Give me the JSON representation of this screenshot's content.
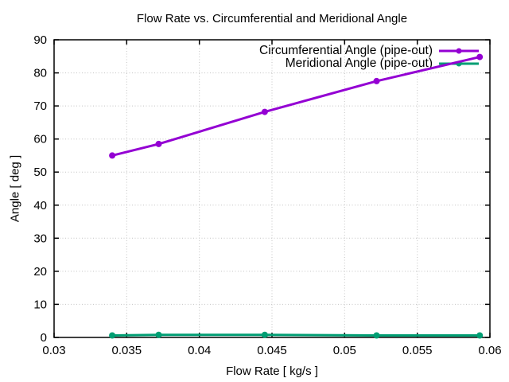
{
  "chart_data": {
    "type": "line",
    "title": "Flow Rate vs. Circumferential and Meridional Angle",
    "xlabel": "Flow Rate [ kg/s ]",
    "ylabel": "Angle [ deg ]",
    "xlim": [
      0.03,
      0.06
    ],
    "ylim": [
      0,
      90
    ],
    "xticks": [
      0.03,
      0.035,
      0.04,
      0.045,
      0.05,
      0.055,
      0.06
    ],
    "xtick_labels": [
      "0.03",
      "0.035",
      "0.04",
      "0.045",
      "0.05",
      "0.055",
      "0.06"
    ],
    "yticks": [
      0,
      10,
      20,
      30,
      40,
      50,
      60,
      70,
      80,
      90
    ],
    "ytick_labels": [
      "0",
      "10",
      "20",
      "30",
      "40",
      "50",
      "60",
      "70",
      "80",
      "90"
    ],
    "grid": true,
    "grid_style": "dotted",
    "legend_position": "top-right-inside",
    "marker": "filled-circle",
    "x": [
      0.034,
      0.0372,
      0.0445,
      0.0522,
      0.0593
    ],
    "series": [
      {
        "name": "Circumferential Angle (pipe-out)",
        "color": "#9400d3",
        "values": [
          55,
          58.5,
          68.2,
          77.5,
          84.8
        ]
      },
      {
        "name": "Meridional Angle (pipe-out)",
        "color": "#009e73",
        "values": [
          0.6,
          0.8,
          0.8,
          0.6,
          0.6
        ]
      }
    ]
  },
  "colors": {
    "background": "#ffffff",
    "frame": "#000000",
    "grid": "#c4c4c4",
    "text": "#000000"
  }
}
